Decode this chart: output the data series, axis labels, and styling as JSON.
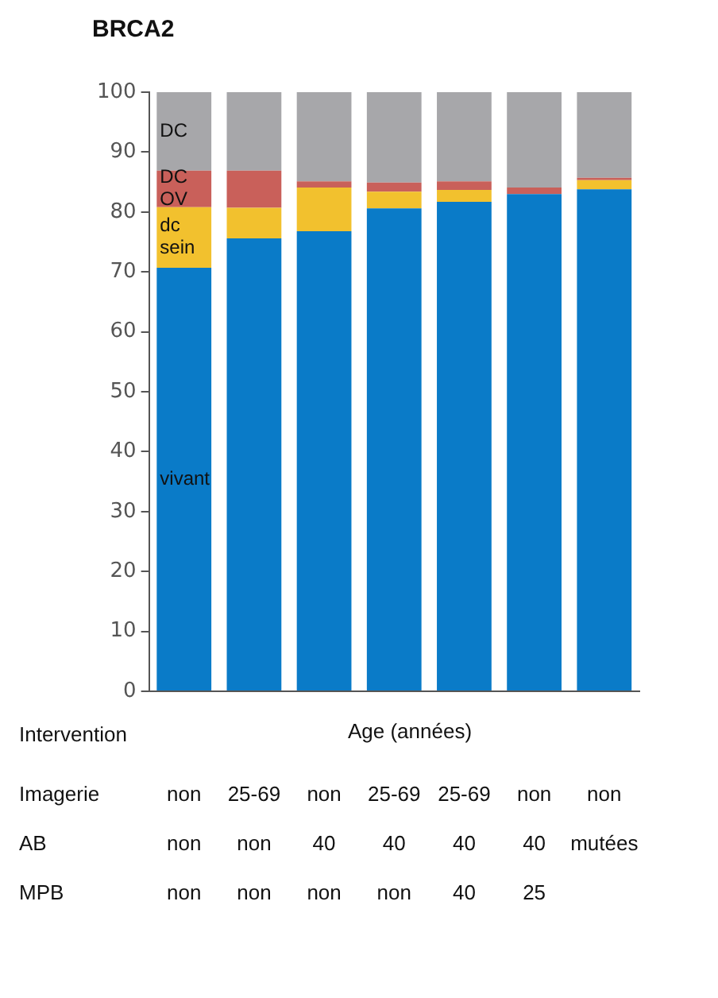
{
  "chart_data": {
    "type": "bar",
    "title": "BRCA2",
    "stacked": true,
    "grid": false,
    "categories": [
      "non\nnon\nnon",
      "25-69\nnon\nnon",
      "non\n40\nnon",
      "25-69\n40\nnon",
      "25-69\n40\n40",
      "non\n40\n25",
      "non\nmutées"
    ],
    "series": [
      {
        "name": "vivant",
        "color": "#0a7bc8",
        "values": [
          70.7,
          75.6,
          76.8,
          80.6,
          81.7,
          83.0,
          83.8
        ]
      },
      {
        "name": "dc sein",
        "color": "#f2c12e",
        "values": [
          10.1,
          5.1,
          7.3,
          2.8,
          2.0,
          0,
          1.5
        ]
      },
      {
        "name": "DC OV",
        "color": "#c9605a",
        "values": [
          6.1,
          6.2,
          1.0,
          1.5,
          1.4,
          1.1,
          0.4
        ]
      },
      {
        "name": "DC",
        "color": "#a7a7aa",
        "values": [
          13.1,
          13.1,
          15.1,
          15.1,
          14.9,
          15.9,
          14.3
        ]
      }
    ],
    "ylim": [
      0,
      100
    ],
    "yticks": [
      0,
      10,
      20,
      30,
      40,
      50,
      60,
      70,
      80,
      90,
      100
    ],
    "annotations": [
      "Intervention",
      "Age (années)",
      "Imagerie",
      "AB",
      "MPB"
    ]
  }
}
